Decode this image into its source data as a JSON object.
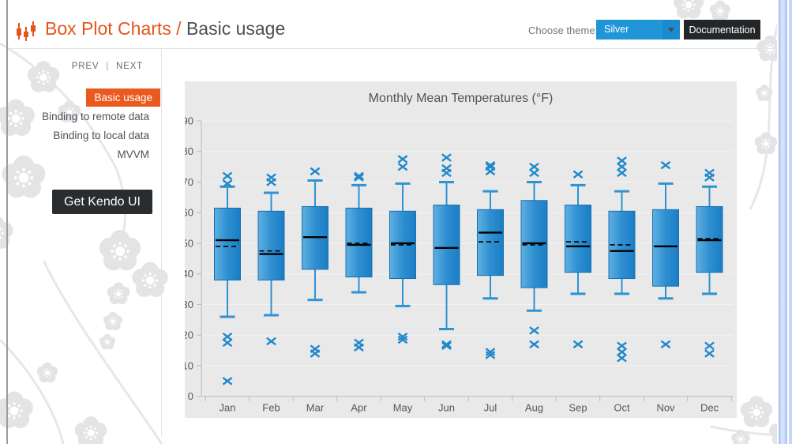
{
  "header": {
    "title_primary": "Box Plot Charts /",
    "title_secondary": "Basic usage",
    "accent_color": "#e2561b",
    "title_color": "#495156"
  },
  "theme_bar": {
    "label": "Choose theme:",
    "selected": "Silver",
    "doc_button": "Documentation",
    "dropdown_bg": "#2095d8",
    "doc_button_bg": "#232729"
  },
  "sidebar": {
    "prev_label": "PREV",
    "separator": "|",
    "next_label": "NEXT",
    "items": [
      {
        "label": "Basic usage",
        "active": true
      },
      {
        "label": "Binding to remote data",
        "active": false
      },
      {
        "label": "Binding to local data",
        "active": false
      },
      {
        "label": "MVVM",
        "active": false
      }
    ],
    "active_item_bg": "#ea5a1e",
    "cta_label": "Get Kendo UI",
    "cta_bg": "#2a2d2f"
  },
  "chart_data": {
    "type": "boxplot",
    "title": "Monthly Mean Temperatures (°F)",
    "xlabel": "",
    "ylabel": "",
    "ylim": [
      0,
      90
    ],
    "ytick_step": 10,
    "grid": true,
    "legend": "none",
    "categories": [
      "Jan",
      "Feb",
      "Mar",
      "Apr",
      "May",
      "Jun",
      "Jul",
      "Aug",
      "Sep",
      "Oct",
      "Nov",
      "Dec"
    ],
    "series": [
      {
        "name": "Monthly Mean Temperatures",
        "points": [
          {
            "category": "Jan",
            "lower": 26,
            "q1": 38,
            "median": 51,
            "mean": 49,
            "q3": 61.5,
            "upper": 68.5,
            "outliers": [
              72,
              69.5,
              19.5,
              17.5,
              5
            ]
          },
          {
            "category": "Feb",
            "lower": 26.5,
            "q1": 38,
            "median": 46.5,
            "mean": 47.5,
            "q3": 60.5,
            "upper": 66.5,
            "outliers": [
              71.5,
              70,
              18
            ]
          },
          {
            "category": "Mar",
            "lower": 31.5,
            "q1": 41.5,
            "median": 52,
            "mean": 52,
            "q3": 62,
            "upper": 70.5,
            "outliers": [
              73.5,
              15.5,
              14
            ]
          },
          {
            "category": "Apr",
            "lower": 34,
            "q1": 39,
            "median": 49.5,
            "mean": 50,
            "q3": 61.5,
            "upper": 69,
            "outliers": [
              72,
              71.5,
              17.5,
              16
            ]
          },
          {
            "category": "May",
            "lower": 29.5,
            "q1": 38.5,
            "median": 50,
            "mean": 49.5,
            "q3": 60.5,
            "upper": 69.5,
            "outliers": [
              77.5,
              75,
              19.5,
              18.5
            ]
          },
          {
            "category": "Jun",
            "lower": 22,
            "q1": 36.5,
            "median": 48.5,
            "mean": 48.5,
            "q3": 62.5,
            "upper": 70,
            "outliers": [
              78,
              74.5,
              73,
              17,
              16.5
            ]
          },
          {
            "category": "Jul",
            "lower": 32,
            "q1": 39.5,
            "median": 53.5,
            "mean": 50.5,
            "q3": 61,
            "upper": 67,
            "outliers": [
              75.5,
              75,
              73.5,
              14.5,
              13.5
            ]
          },
          {
            "category": "Aug",
            "lower": 28,
            "q1": 35.5,
            "median": 50,
            "mean": 49.5,
            "q3": 64,
            "upper": 70,
            "outliers": [
              75,
              73,
              21.5,
              17
            ]
          },
          {
            "category": "Sep",
            "lower": 33.5,
            "q1": 40.5,
            "median": 49,
            "mean": 50.5,
            "q3": 62.5,
            "upper": 69,
            "outliers": [
              72.5,
              17
            ]
          },
          {
            "category": "Oct",
            "lower": 33.5,
            "q1": 38.5,
            "median": 47.5,
            "mean": 49.5,
            "q3": 60.5,
            "upper": 67,
            "outliers": [
              77,
              75,
              73,
              16.5,
              14.5,
              12.5
            ]
          },
          {
            "category": "Nov",
            "lower": 32,
            "q1": 36,
            "median": 49,
            "mean": 49,
            "q3": 61,
            "upper": 69.5,
            "outliers": [
              75.5,
              17
            ]
          },
          {
            "category": "Dec",
            "lower": 33.5,
            "q1": 40.5,
            "median": 51,
            "mean": 51.5,
            "q3": 62,
            "upper": 68.5,
            "outliers": [
              73,
              71.5,
              16.5,
              14
            ]
          }
        ]
      }
    ],
    "colors": {
      "box_fill_light": "#5fb0e2",
      "box_fill_mid": "#2e8fd0",
      "box_fill_dark": "#1b7dc5",
      "box_stroke": "#1b6fae",
      "whisker": "#2f93d3",
      "outlier": "#2089cb",
      "median": "#000000",
      "mean": "#000000",
      "plot_bg": "#e9e9ea",
      "gridline": "#f3f3f4",
      "axis": "#b8babd",
      "label": "#54595d",
      "title": "#4e5357"
    }
  }
}
